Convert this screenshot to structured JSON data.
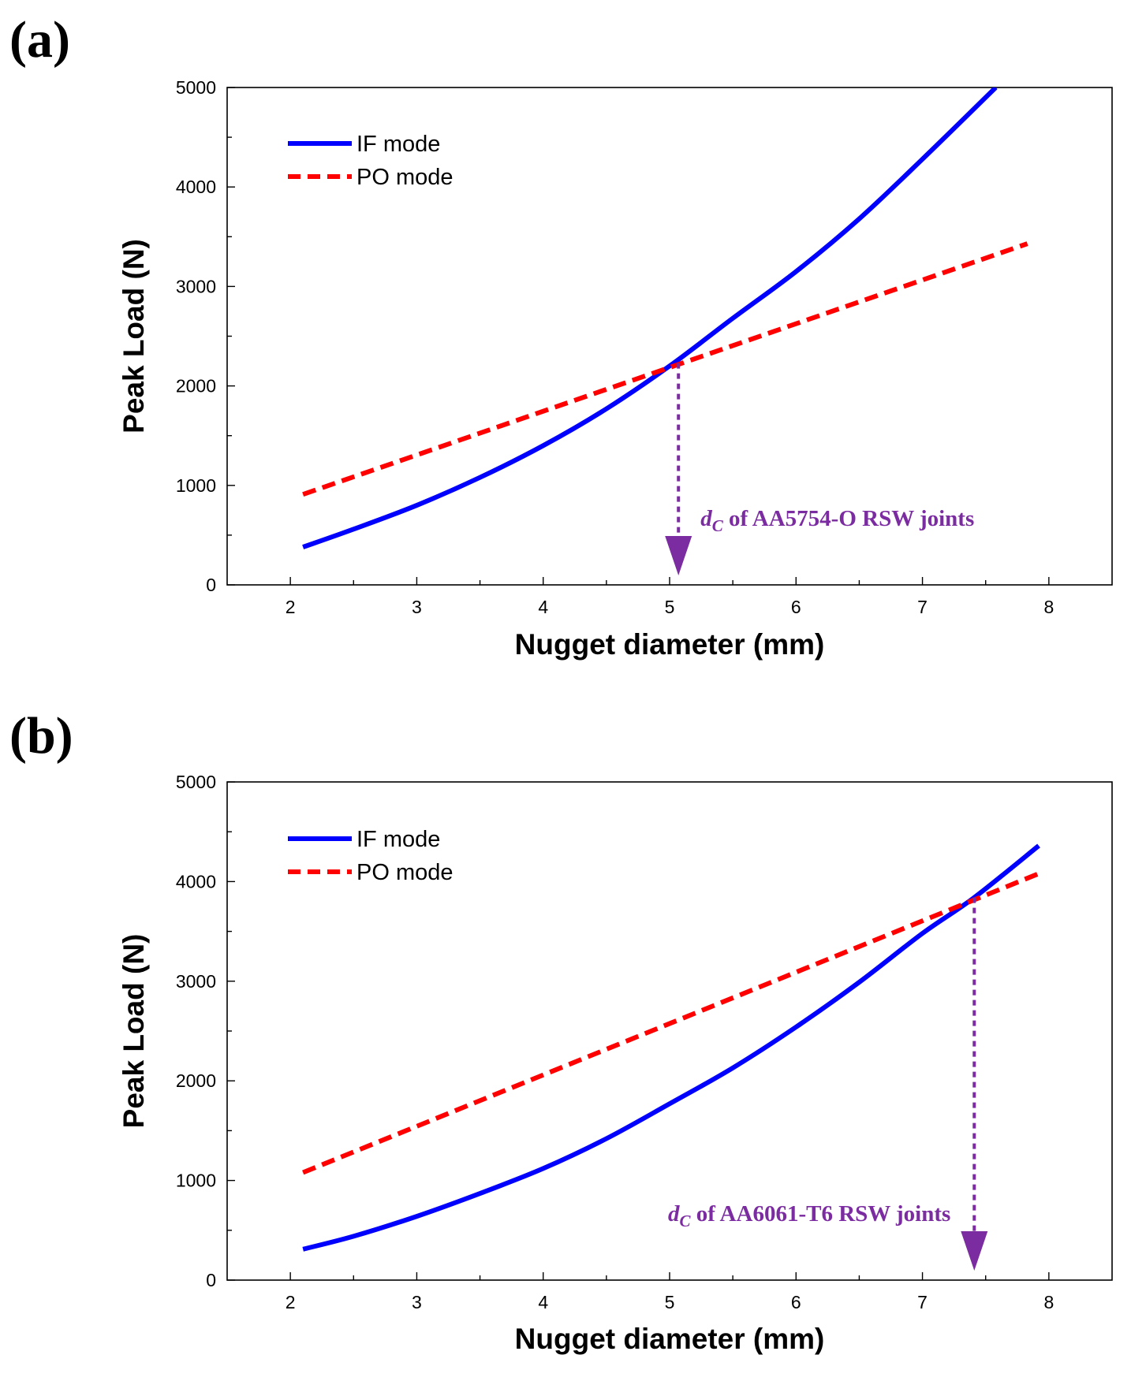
{
  "chart_data": [
    {
      "panel_label": "(a)",
      "type": "line",
      "xlabel": "Nugget diameter (mm)",
      "ylabel": "Peak Load (N)",
      "xlim": [
        1.5,
        8.5
      ],
      "ylim": [
        0,
        5000
      ],
      "xticks": [
        "2",
        "3",
        "4",
        "5",
        "6",
        "7",
        "8"
      ],
      "yticks": [
        "0",
        "1000",
        "2000",
        "3000",
        "4000",
        "5000"
      ],
      "legend_position": "top-left",
      "series": [
        {
          "name": "IF mode",
          "style": "solid",
          "color": "#0000ff",
          "x": [
            2.1,
            2.5,
            3.0,
            3.5,
            4.0,
            4.5,
            5.0,
            5.5,
            6.0,
            6.5,
            7.0,
            7.58
          ],
          "y": [
            380,
            560,
            800,
            1080,
            1400,
            1770,
            2200,
            2680,
            3150,
            3680,
            4280,
            5000
          ]
        },
        {
          "name": "PO mode",
          "style": "dashed",
          "color": "#ff0000",
          "x": [
            2.1,
            7.83
          ],
          "y": [
            910,
            3430
          ]
        }
      ],
      "annotation": {
        "prefix": "d",
        "subscript": "C",
        "text": " of AA5754-O RSW joints",
        "color": "#7b2ca0",
        "x": 5.07,
        "y_from": 2230,
        "y_to": 0
      }
    },
    {
      "panel_label": "(b)",
      "type": "line",
      "xlabel": "Nugget diameter (mm)",
      "ylabel": "Peak Load (N)",
      "xlim": [
        1.5,
        8.5
      ],
      "ylim": [
        0,
        5000
      ],
      "xticks": [
        "2",
        "3",
        "4",
        "5",
        "6",
        "7",
        "8"
      ],
      "yticks": [
        "0",
        "1000",
        "2000",
        "3000",
        "4000",
        "5000"
      ],
      "legend_position": "top-left",
      "series": [
        {
          "name": "IF mode",
          "style": "solid",
          "color": "#0000ff",
          "x": [
            2.1,
            2.5,
            3.0,
            3.5,
            4.0,
            4.5,
            5.0,
            5.5,
            6.0,
            6.5,
            7.0,
            7.41,
            7.92
          ],
          "y": [
            310,
            440,
            640,
            870,
            1120,
            1420,
            1770,
            2130,
            2540,
            2990,
            3480,
            3840,
            4360
          ]
        },
        {
          "name": "PO mode",
          "style": "dashed",
          "color": "#ff0000",
          "x": [
            2.1,
            7.92
          ],
          "y": [
            1080,
            4080
          ]
        }
      ],
      "annotation": {
        "prefix": "d",
        "subscript": "C",
        "text": " of AA6061-T6 RSW joints",
        "color": "#7b2ca0",
        "x": 7.41,
        "y_from": 3840,
        "y_to": 0
      }
    }
  ]
}
